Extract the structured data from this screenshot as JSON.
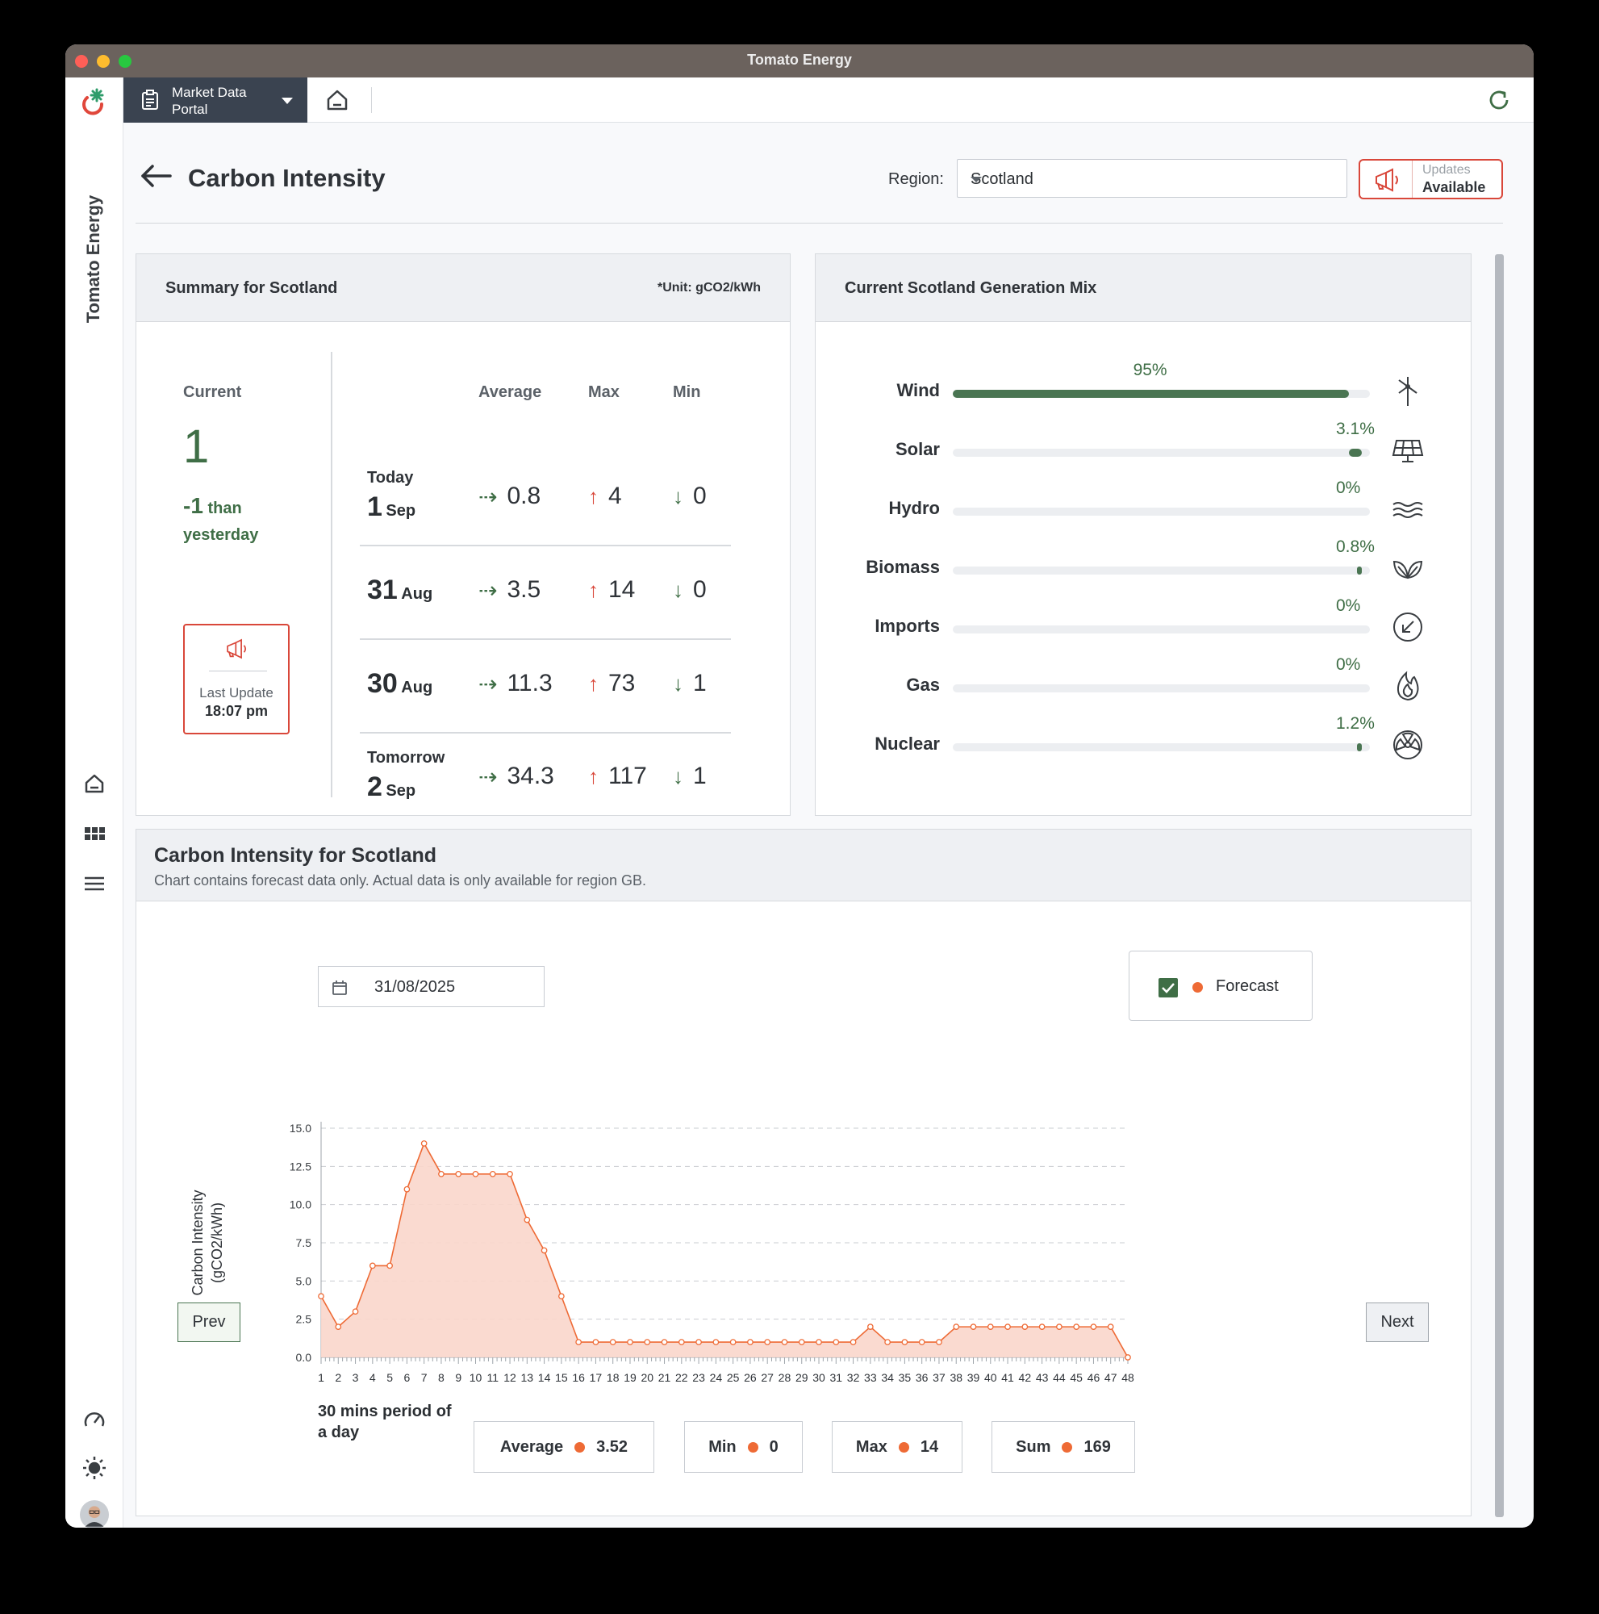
{
  "window": {
    "title": "Tomato Energy"
  },
  "sidebar": {
    "brand": "Tomato Energy"
  },
  "topbar": {
    "portal_label": "Market Data Portal"
  },
  "header": {
    "title": "Carbon Intensity",
    "region_label": "Region:",
    "region_value": "Scotland",
    "updates_line1": "Updates",
    "updates_line2": "Available"
  },
  "summary": {
    "title": "Summary for Scotland",
    "unit": "*Unit: gCO2/kWh",
    "current_label": "Current",
    "current_value": "1",
    "delta_value": "-1",
    "delta_text_1": "than",
    "delta_text_2": "yesterday",
    "last_update_label": "Last Update",
    "last_update_time": "18:07 pm",
    "col_average": "Average",
    "col_max": "Max",
    "col_min": "Min",
    "rows": [
      {
        "label": "Today",
        "day": "1",
        "month": "Sep",
        "avg": "0.8",
        "max": "4",
        "min": "0"
      },
      {
        "label": "",
        "day": "31",
        "month": "Aug",
        "avg": "3.5",
        "max": "14",
        "min": "0"
      },
      {
        "label": "",
        "day": "30",
        "month": "Aug",
        "avg": "11.3",
        "max": "73",
        "min": "1"
      },
      {
        "label": "Tomorrow",
        "day": "2",
        "month": "Sep",
        "avg": "34.3",
        "max": "117",
        "min": "1"
      }
    ]
  },
  "mix": {
    "title": "Current Scotland Generation Mix",
    "items": [
      {
        "name": "Wind",
        "pct_label": "95%",
        "value": 95,
        "icon": "wind-turbine-icon"
      },
      {
        "name": "Solar",
        "pct_label": "3.1%",
        "value": 3.1,
        "icon": "solar-panel-icon"
      },
      {
        "name": "Hydro",
        "pct_label": "0%",
        "value": 0,
        "icon": "water-waves-icon"
      },
      {
        "name": "Biomass",
        "pct_label": "0.8%",
        "value": 0.8,
        "icon": "leaves-icon"
      },
      {
        "name": "Imports",
        "pct_label": "0%",
        "value": 0,
        "icon": "import-arrow-icon"
      },
      {
        "name": "Gas",
        "pct_label": "0%",
        "value": 0,
        "icon": "flame-icon"
      },
      {
        "name": "Nuclear",
        "pct_label": "1.2%",
        "value": 1.2,
        "icon": "radiation-icon"
      }
    ]
  },
  "chart_panel": {
    "title": "Carbon Intensity for Scotland",
    "subtitle": "Chart contains forecast data only. Actual data is only available for region GB.",
    "date_value": "31/08/2025",
    "legend_label": "Forecast",
    "prev_label": "Prev",
    "next_label": "Next",
    "stats": [
      {
        "label": "Average",
        "value": "3.52"
      },
      {
        "label": "Min",
        "value": "0"
      },
      {
        "label": "Max",
        "value": "14"
      },
      {
        "label": "Sum",
        "value": "169"
      }
    ]
  },
  "colors": {
    "accent_green": "#3f6e46",
    "accent_red": "#d9473a",
    "series_orange": "#ee6a35",
    "area_fill": "#f9d6cb"
  },
  "chart_data": {
    "type": "area",
    "xlabel": "30 mins period of a day",
    "ylabel": "Carbon Intensity (gCO2/kWh)",
    "ylim": [
      0,
      15
    ],
    "yticks": [
      "0.0",
      "2.5",
      "5.0",
      "7.5",
      "10.0",
      "12.5",
      "15.0"
    ],
    "grid": true,
    "x": [
      1,
      2,
      3,
      4,
      5,
      6,
      7,
      8,
      9,
      10,
      11,
      12,
      13,
      14,
      15,
      16,
      17,
      18,
      19,
      20,
      21,
      22,
      23,
      24,
      25,
      26,
      27,
      28,
      29,
      30,
      31,
      32,
      33,
      34,
      35,
      36,
      37,
      38,
      39,
      40,
      41,
      42,
      43,
      44,
      45,
      46,
      47,
      48
    ],
    "series": [
      {
        "name": "Forecast",
        "values": [
          4,
          2,
          3,
          6,
          6,
          11,
          14,
          12,
          12,
          12,
          12,
          12,
          9,
          7,
          4,
          1,
          1,
          1,
          1,
          1,
          1,
          1,
          1,
          1,
          1,
          1,
          1,
          1,
          1,
          1,
          1,
          1,
          2,
          1,
          1,
          1,
          1,
          2,
          2,
          2,
          2,
          2,
          2,
          2,
          2,
          2,
          2,
          0
        ]
      }
    ]
  }
}
